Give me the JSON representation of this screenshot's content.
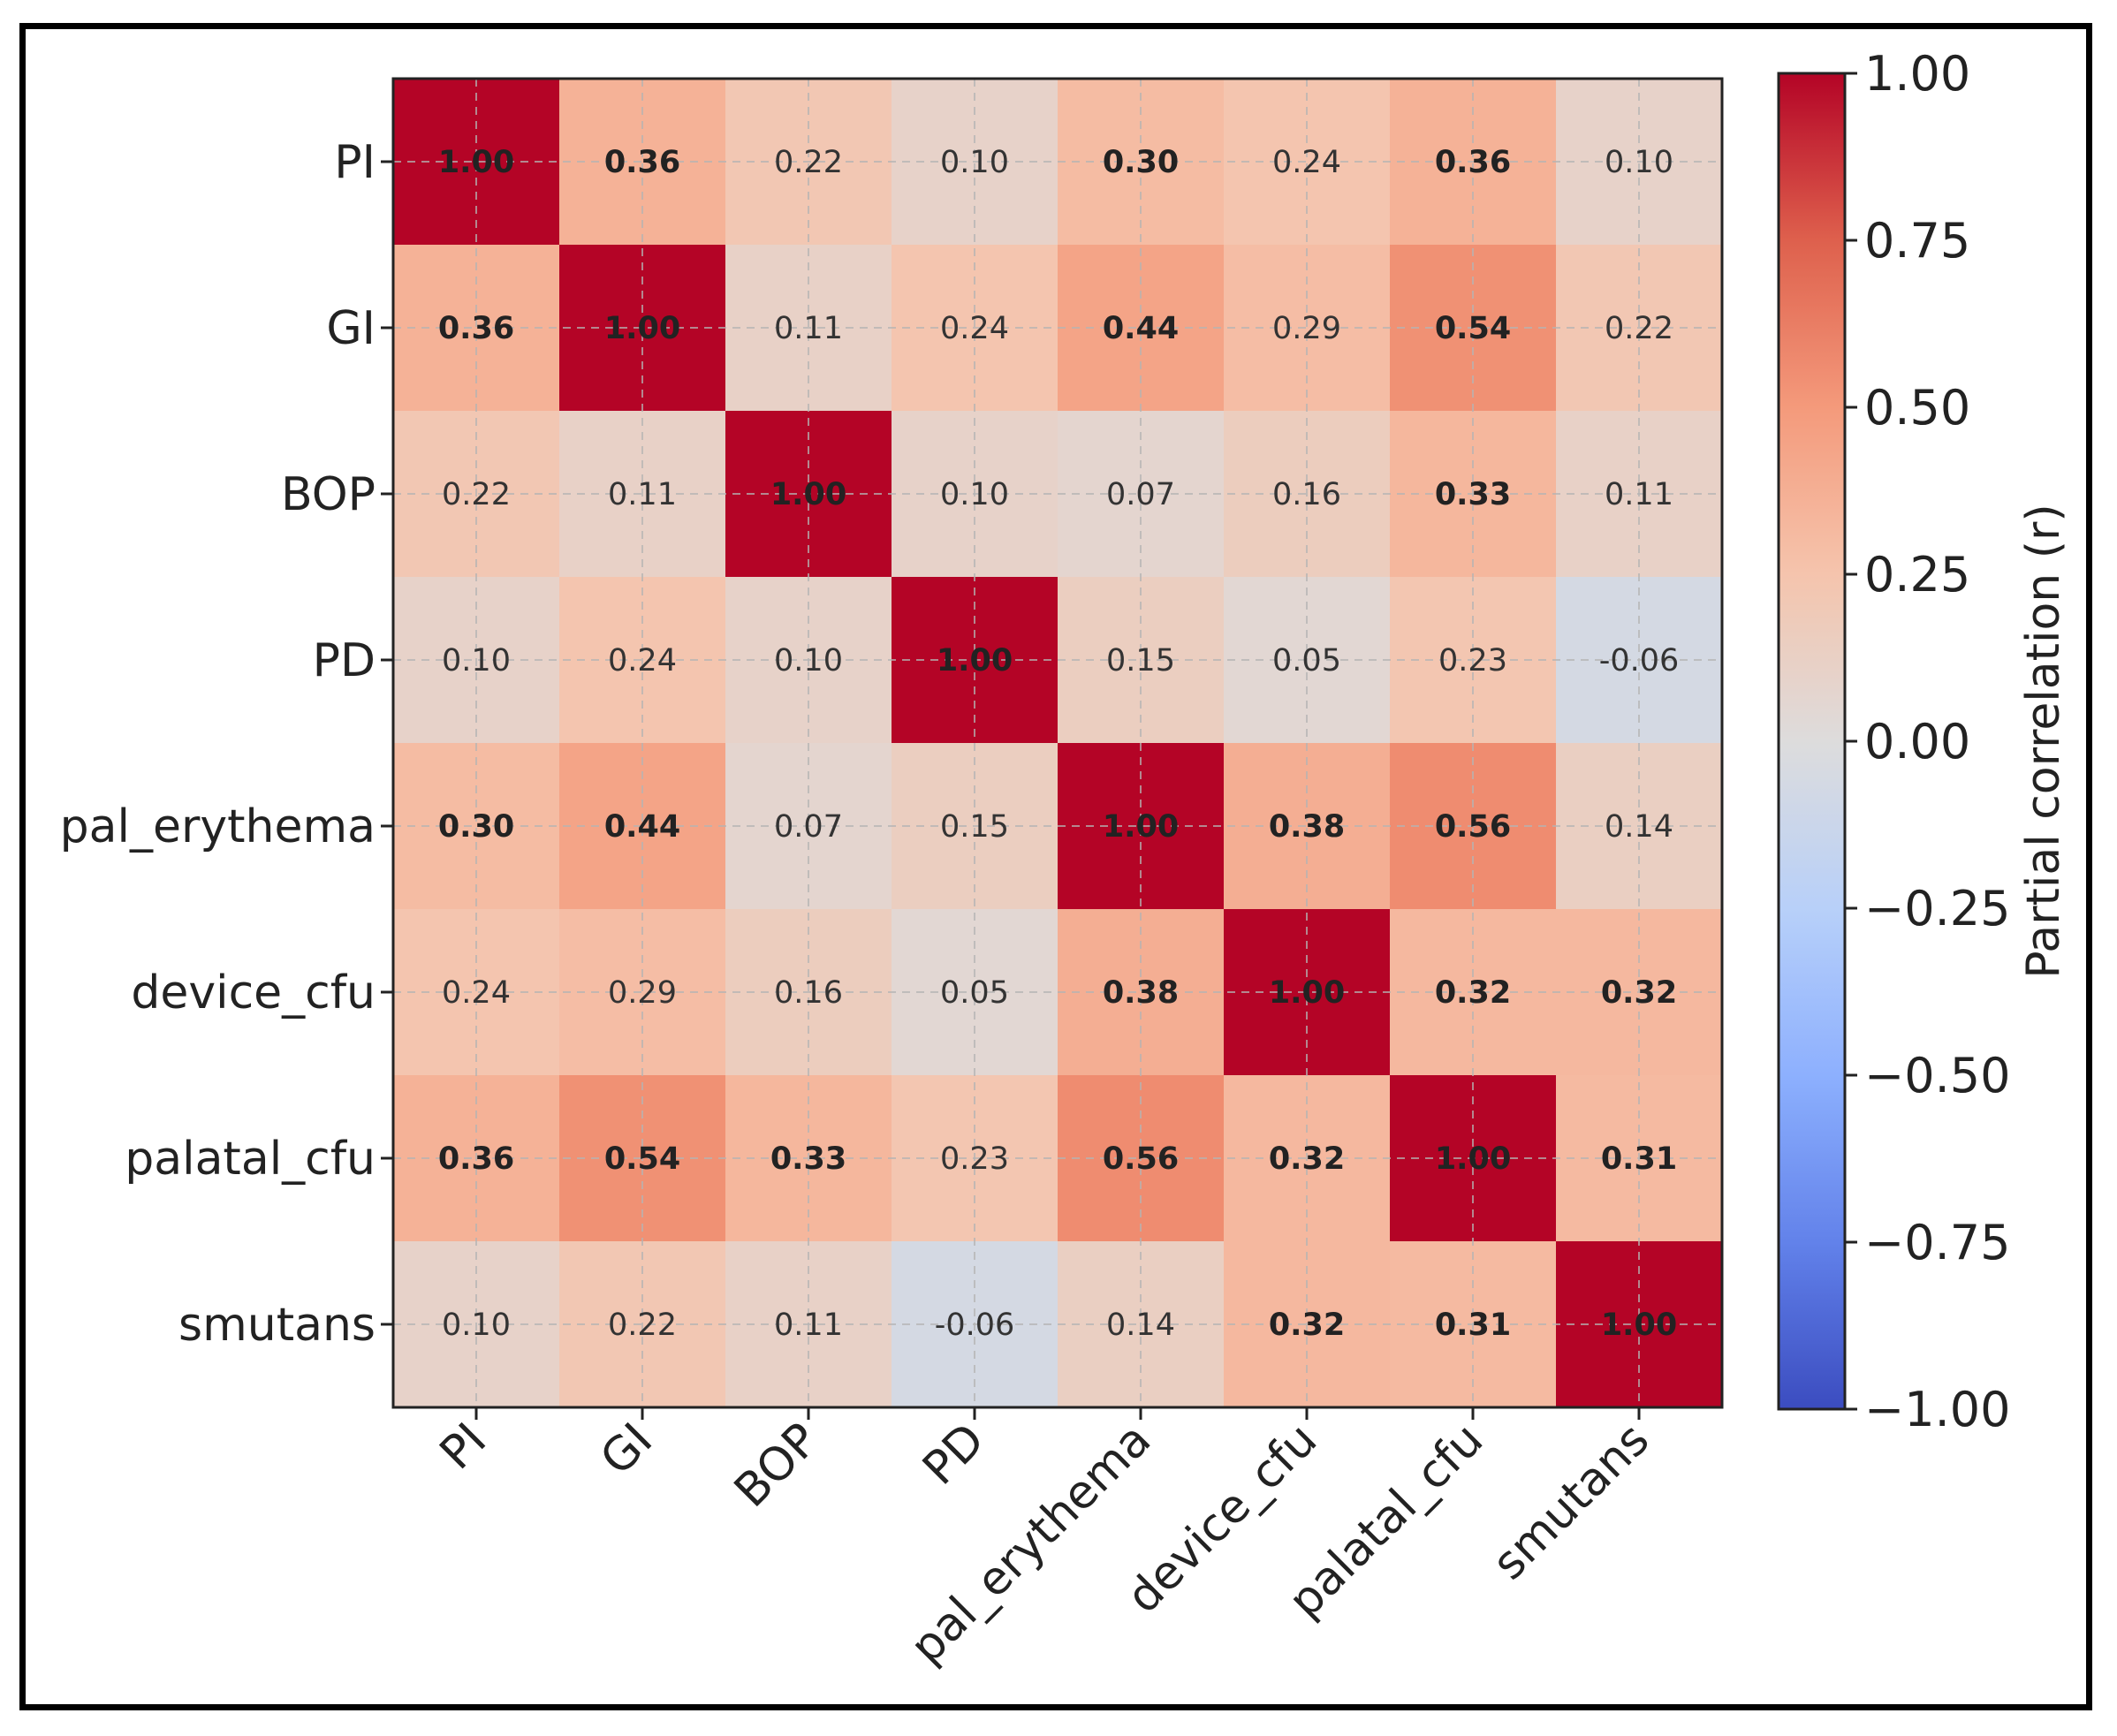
{
  "chart_data": {
    "type": "heatmap",
    "title": "",
    "xlabel": "",
    "ylabel": "",
    "variables": [
      "PI",
      "GI",
      "BOP",
      "PD",
      "pal_erythema",
      "device_cfu",
      "palatal_cfu",
      "smutans"
    ],
    "matrix": [
      [
        1.0,
        0.36,
        0.22,
        0.1,
        0.3,
        0.24,
        0.36,
        0.1
      ],
      [
        0.36,
        1.0,
        0.11,
        0.24,
        0.44,
        0.29,
        0.54,
        0.22
      ],
      [
        0.22,
        0.11,
        1.0,
        0.1,
        0.07,
        0.16,
        0.33,
        0.11
      ],
      [
        0.1,
        0.24,
        0.1,
        1.0,
        0.15,
        0.05,
        0.23,
        -0.06
      ],
      [
        0.3,
        0.44,
        0.07,
        0.15,
        1.0,
        0.38,
        0.56,
        0.14
      ],
      [
        0.24,
        0.29,
        0.16,
        0.05,
        0.38,
        1.0,
        0.32,
        0.32
      ],
      [
        0.36,
        0.54,
        0.33,
        0.23,
        0.56,
        0.32,
        1.0,
        0.31
      ],
      [
        0.1,
        0.22,
        0.11,
        -0.06,
        0.14,
        0.32,
        0.31,
        1.0
      ]
    ],
    "bold_threshold": 0.3,
    "colorbar": {
      "label": "Partial correlation (r)",
      "range": [
        -1.0,
        1.0
      ],
      "ticks": [
        1.0,
        0.75,
        0.5,
        0.25,
        0.0,
        -0.25,
        -0.5,
        -0.75,
        -1.0
      ],
      "tick_labels": [
        "1.00",
        "0.75",
        "0.50",
        "0.25",
        "0.00",
        "−0.25",
        "−0.50",
        "−0.75",
        "−1.00"
      ],
      "colormap": "coolwarm"
    },
    "grid": true
  },
  "colors": {
    "grid_line": "#b4b4b4",
    "text_dark": "#222222"
  }
}
